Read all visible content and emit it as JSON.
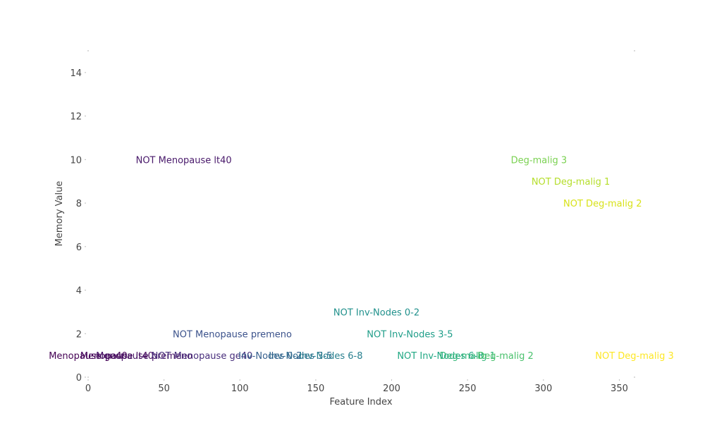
{
  "chart_data": {
    "type": "scatter",
    "title": "",
    "xlabel": "Feature Index",
    "ylabel": "Memory Value",
    "xlim": [
      0,
      360
    ],
    "ylim": [
      0,
      15
    ],
    "x_ticks": [
      0,
      50,
      100,
      150,
      200,
      250,
      300,
      350
    ],
    "y_ticks": [
      0,
      2,
      4,
      6,
      8,
      10,
      12,
      14
    ],
    "grid": false,
    "colormap": "viridis",
    "points": [
      {
        "label": "Menopause ge40",
        "x": 0,
        "y": 1,
        "color": "#440154"
      },
      {
        "label": "Menopause lt40",
        "x": 19,
        "y": 1,
        "color": "#46085c"
      },
      {
        "label": "Menopause premeno",
        "x": 37,
        "y": 1,
        "color": "#471365"
      },
      {
        "label": "NOT Menopause lt40",
        "x": 63,
        "y": 10,
        "color": "#48186a"
      },
      {
        "label": "NOT Menopause ge40",
        "x": 75,
        "y": 1,
        "color": "#472d7b"
      },
      {
        "label": "NOT Menopause premeno",
        "x": 95,
        "y": 2,
        "color": "#3b528b"
      },
      {
        "label": "Inv-Nodes 0-2",
        "x": 120,
        "y": 1,
        "color": "#355f8d"
      },
      {
        "label": "Inv-Nodes 3-5",
        "x": 140,
        "y": 1,
        "color": "#2f6c8e"
      },
      {
        "label": "Inv-Nodes 6-8",
        "x": 160,
        "y": 1,
        "color": "#277f8e"
      },
      {
        "label": "NOT Inv-Nodes 0-2",
        "x": 190,
        "y": 3,
        "color": "#21918c"
      },
      {
        "label": "NOT Inv-Nodes 3-5",
        "x": 212,
        "y": 2,
        "color": "#1f9e89"
      },
      {
        "label": "NOT Inv-Nodes 6-8",
        "x": 232,
        "y": 1,
        "color": "#22a884"
      },
      {
        "label": "Deg-malig 1",
        "x": 250,
        "y": 1,
        "color": "#35b779"
      },
      {
        "label": "Deg-malig 2",
        "x": 275,
        "y": 1,
        "color": "#4ac16d"
      },
      {
        "label": "Deg-malig 3",
        "x": 297,
        "y": 10,
        "color": "#7ad151"
      },
      {
        "label": "NOT Deg-malig 1",
        "x": 318,
        "y": 9,
        "color": "#b5de2b"
      },
      {
        "label": "NOT Deg-malig 2",
        "x": 339,
        "y": 8,
        "color": "#d8e219"
      },
      {
        "label": "NOT Deg-malig 3",
        "x": 360,
        "y": 1,
        "color": "#fde725"
      }
    ]
  }
}
